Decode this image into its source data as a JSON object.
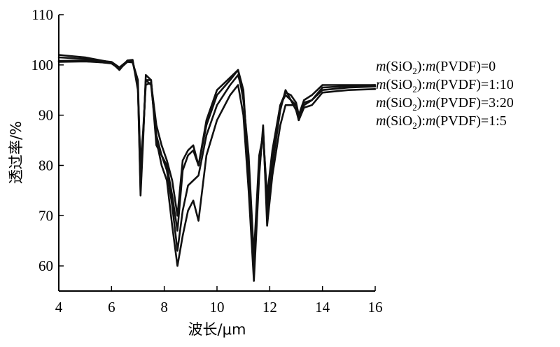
{
  "chart_data": {
    "type": "line",
    "title": "",
    "xlabel": "波长/μm",
    "ylabel": "透过率/%",
    "xlim": [
      4,
      16
    ],
    "ylim": [
      55,
      110
    ],
    "xticks": [
      4,
      6,
      8,
      10,
      12,
      14,
      16
    ],
    "yticks": [
      60,
      70,
      80,
      90,
      100,
      110
    ],
    "grid": false,
    "legend_position": "right",
    "series": [
      {
        "name": "m(SiO2):m(PVDF)=0",
        "legend": {
          "prefix": "m",
          "a": "(SiO",
          "sub": "2",
          "b": "):",
          "m2": "m",
          "c": "(PVDF)=0"
        },
        "points": [
          [
            4,
            100.8
          ],
          [
            5,
            100.9
          ],
          [
            6,
            100.3
          ],
          [
            6.3,
            99.2
          ],
          [
            6.6,
            100.6
          ],
          [
            6.8,
            100.5
          ],
          [
            7.0,
            97
          ],
          [
            7.1,
            78
          ],
          [
            7.2,
            86
          ],
          [
            7.3,
            97
          ],
          [
            7.5,
            96
          ],
          [
            7.7,
            86
          ],
          [
            7.9,
            82
          ],
          [
            8.1,
            79
          ],
          [
            8.3,
            72
          ],
          [
            8.5,
            63
          ],
          [
            8.7,
            71
          ],
          [
            8.9,
            76
          ],
          [
            9.1,
            77
          ],
          [
            9.3,
            78
          ],
          [
            9.6,
            86
          ],
          [
            10.0,
            92
          ],
          [
            10.5,
            96
          ],
          [
            10.8,
            98
          ],
          [
            11.0,
            94
          ],
          [
            11.2,
            80
          ],
          [
            11.4,
            61
          ],
          [
            11.6,
            80
          ],
          [
            11.75,
            87
          ],
          [
            11.9,
            72
          ],
          [
            12.1,
            82
          ],
          [
            12.4,
            92
          ],
          [
            12.6,
            94
          ],
          [
            12.8,
            93
          ],
          [
            13.0,
            91
          ],
          [
            13.1,
            89
          ],
          [
            13.3,
            92
          ],
          [
            13.6,
            93
          ],
          [
            14,
            95
          ],
          [
            15,
            95.5
          ],
          [
            16,
            95.7
          ]
        ]
      },
      {
        "name": "m(SiO2):m(PVDF)=1:10",
        "legend": {
          "prefix": "m",
          "a": "(SiO",
          "sub": "2",
          "b": "):",
          "m2": "m",
          "c": "(PVDF)=1:10"
        },
        "points": [
          [
            4,
            101.5
          ],
          [
            5,
            101.2
          ],
          [
            6,
            100.6
          ],
          [
            6.3,
            99.5
          ],
          [
            6.6,
            100.8
          ],
          [
            6.8,
            100.8
          ],
          [
            7.0,
            96
          ],
          [
            7.1,
            74
          ],
          [
            7.2,
            85
          ],
          [
            7.3,
            98
          ],
          [
            7.5,
            97
          ],
          [
            7.7,
            85
          ],
          [
            7.9,
            80
          ],
          [
            8.1,
            77
          ],
          [
            8.3,
            68
          ],
          [
            8.5,
            60
          ],
          [
            8.7,
            66
          ],
          [
            8.9,
            71
          ],
          [
            9.1,
            73
          ],
          [
            9.3,
            69
          ],
          [
            9.6,
            82
          ],
          [
            10.0,
            89
          ],
          [
            10.5,
            94
          ],
          [
            10.8,
            96
          ],
          [
            11.0,
            90
          ],
          [
            11.2,
            75
          ],
          [
            11.4,
            57
          ],
          [
            11.6,
            78
          ],
          [
            11.75,
            88
          ],
          [
            11.9,
            68
          ],
          [
            12.1,
            78
          ],
          [
            12.4,
            88
          ],
          [
            12.6,
            92
          ],
          [
            12.8,
            92
          ],
          [
            13.0,
            92
          ],
          [
            13.1,
            89
          ],
          [
            13.3,
            91.5
          ],
          [
            13.6,
            92
          ],
          [
            14,
            94.5
          ],
          [
            15,
            95
          ],
          [
            16,
            95.2
          ]
        ]
      },
      {
        "name": "m(SiO2):m(PVDF)=3:20",
        "legend": {
          "prefix": "m",
          "a": "(SiO",
          "sub": "2",
          "b": "):",
          "m2": "m",
          "c": "(PVDF)=3:20"
        },
        "points": [
          [
            4,
            100.6
          ],
          [
            5,
            100.7
          ],
          [
            6,
            100.4
          ],
          [
            6.3,
            99.3
          ],
          [
            6.6,
            100.7
          ],
          [
            6.8,
            100.6
          ],
          [
            7.0,
            96
          ],
          [
            7.1,
            75
          ],
          [
            7.2,
            86
          ],
          [
            7.3,
            97
          ],
          [
            7.5,
            97
          ],
          [
            7.7,
            84
          ],
          [
            7.9,
            82
          ],
          [
            8.1,
            80
          ],
          [
            8.3,
            74
          ],
          [
            8.5,
            67
          ],
          [
            8.7,
            79
          ],
          [
            8.9,
            82
          ],
          [
            9.1,
            83
          ],
          [
            9.3,
            80
          ],
          [
            9.6,
            88
          ],
          [
            10.0,
            94
          ],
          [
            10.5,
            97
          ],
          [
            10.8,
            99
          ],
          [
            11.0,
            95
          ],
          [
            11.2,
            78
          ],
          [
            11.4,
            59
          ],
          [
            11.6,
            79
          ],
          [
            11.75,
            87
          ],
          [
            11.9,
            70
          ],
          [
            12.1,
            80
          ],
          [
            12.4,
            91
          ],
          [
            12.6,
            95
          ],
          [
            12.8,
            93
          ],
          [
            13.0,
            92
          ],
          [
            13.1,
            89
          ],
          [
            13.3,
            92.5
          ],
          [
            13.6,
            93
          ],
          [
            14,
            95.5
          ],
          [
            15,
            95.8
          ],
          [
            16,
            96
          ]
        ]
      },
      {
        "name": "m(SiO2):m(PVDF)=1:5",
        "legend": {
          "prefix": "m",
          "a": "(SiO",
          "sub": "2",
          "b": "):",
          "m2": "m",
          "c": "(PVDF)=1:5"
        },
        "points": [
          [
            4,
            102
          ],
          [
            5,
            101.5
          ],
          [
            6,
            100.5
          ],
          [
            6.3,
            99.0
          ],
          [
            6.6,
            100.9
          ],
          [
            6.8,
            101
          ],
          [
            7.0,
            95
          ],
          [
            7.1,
            80
          ],
          [
            7.2,
            87
          ],
          [
            7.3,
            96
          ],
          [
            7.5,
            96.5
          ],
          [
            7.7,
            88
          ],
          [
            7.9,
            84
          ],
          [
            8.1,
            81
          ],
          [
            8.3,
            77
          ],
          [
            8.5,
            70
          ],
          [
            8.7,
            81
          ],
          [
            8.9,
            83
          ],
          [
            9.1,
            84
          ],
          [
            9.3,
            80
          ],
          [
            9.6,
            89
          ],
          [
            10.0,
            95
          ],
          [
            10.5,
            97.5
          ],
          [
            10.8,
            99
          ],
          [
            11.0,
            93
          ],
          [
            11.2,
            82
          ],
          [
            11.4,
            62
          ],
          [
            11.6,
            82
          ],
          [
            11.75,
            86
          ],
          [
            11.9,
            74
          ],
          [
            12.1,
            83
          ],
          [
            12.4,
            92
          ],
          [
            12.6,
            94.5
          ],
          [
            12.8,
            94
          ],
          [
            13.0,
            92.5
          ],
          [
            13.1,
            90
          ],
          [
            13.3,
            93
          ],
          [
            13.6,
            94
          ],
          [
            14,
            96
          ],
          [
            15,
            96
          ],
          [
            16,
            96
          ]
        ]
      }
    ]
  }
}
